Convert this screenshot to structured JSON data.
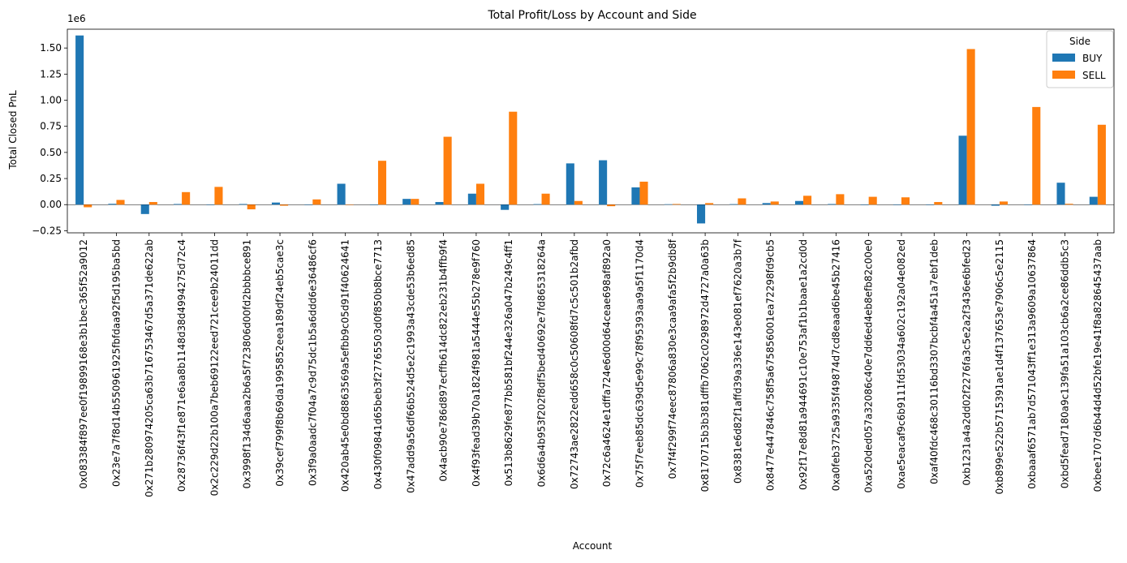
{
  "chart_data": {
    "type": "bar",
    "title": "Total Profit/Loss by Account and Side",
    "xlabel": "Account",
    "ylabel": "Total Closed PnL",
    "offset_text": "1e6",
    "ylim": [
      -270000,
      1680000
    ],
    "yticks": [
      -250000,
      0,
      250000,
      500000,
      750000,
      1000000,
      1250000,
      1500000
    ],
    "ytick_labels": [
      "−0.25",
      "0.00",
      "0.25",
      "0.50",
      "0.75",
      "1.00",
      "1.25",
      "1.50"
    ],
    "legend": {
      "title": "Side",
      "placement": "top-right"
    },
    "colors": {
      "BUY": "#1f77b4",
      "SELL": "#ff7f0e"
    },
    "categories": [
      "0x083384f897ee0f19899168e3b1bec365f52a9012",
      "0x23e7a7f8d14b550961925fbfdaa92f5d195ba5bd",
      "0x271b280974205ca63b716753467d5a371de622ab",
      "0x28736f43f1e871e6aa8b1148d38d4994275d72c4",
      "0x2c229d22b100a7beb69122eed721cee9b24011dd",
      "0x3998f134d6aaa2b6a5f723806d00fd2bbbbce891",
      "0x39cef799f8b69da1995852eea189df24eb5cae3c",
      "0x3f9a0aadc7f04a7c9d75dc1b5a6ddd6e36486cf6",
      "0x420ab45e0bd8863569a5efbb9c05d91f40624641",
      "0x430f09841d65beb3f27765503d0f850b8bce7713",
      "0x47add9a56df66b524d5e2c1993a43cde53b6ed85",
      "0x4acb90e786d897ecffb614dc822eb231b4ffb9f4",
      "0x4f93fead39b70a1824f981a5444e55b278e9f760",
      "0x513b8629fe877bb581bf244e326a047b249c4ff1",
      "0x6d6a4b953f202f8df5bed40692e7fd865318264a",
      "0x72743ae2822edd658c0c50608fd7c5c501b2afbd",
      "0x72c6a4624e1dffa724e6d00d64ceae698af892a0",
      "0x75f7eeb85dc639d5e99c78f95393aa9a5f1170d4",
      "0x7f4f299f74eec87806a830e3caa9afa5f2b9db8f",
      "0x8170715b3b381dffb7062c0298972d4727a0a63b",
      "0x8381e6d82f1affd39a336e143e081ef7620a3b7f",
      "0x8477e447846c758f5a675856001ea72298fd9cb5",
      "0x92f17e8d81a944691c10e753af1b1baae1a2cd0d",
      "0xa0feb3725a9335f49874d7cd8eaad6be45b27416",
      "0xa520ded057a32086c40e7dd6ed4eb8efb82c00e0",
      "0xae5eacaf9c6b9111fd53034a602c192a04e082ed",
      "0xaf40fdc468c30116bd3307bcbf4a451a7ebf1deb",
      "0xb1231a4a2dd02f2276fa3c5e2a2f3436e6bfed23",
      "0xb899e522b5715391ae1d4f137653e7906c5e2115",
      "0xbaaaf6571ab7d571043ff1e313a9609a10637864",
      "0xbd5fead7180a9c139fa51a103cb6a2ce86ddb5c3",
      "0xbee1707d6b44d4d52bfe19e41f8a82864543 7aab"
    ],
    "series": [
      {
        "name": "BUY",
        "values": [
          1620000,
          8000,
          -90000,
          6000,
          0,
          6000,
          20000,
          0,
          200000,
          0,
          55000,
          25000,
          105000,
          -50000,
          5000,
          395000,
          425000,
          165000,
          4000,
          -180000,
          5000,
          15000,
          35000,
          6000,
          0,
          0,
          0,
          660000,
          -10000,
          0,
          210000,
          75000
        ]
      },
      {
        "name": "SELL",
        "values": [
          -25000,
          45000,
          25000,
          120000,
          170000,
          -45000,
          -10000,
          50000,
          0,
          420000,
          55000,
          650000,
          200000,
          890000,
          105000,
          35000,
          -15000,
          220000,
          6000,
          15000,
          60000,
          30000,
          85000,
          100000,
          75000,
          70000,
          25000,
          1490000,
          30000,
          935000,
          8000,
          765000
        ]
      }
    ]
  }
}
